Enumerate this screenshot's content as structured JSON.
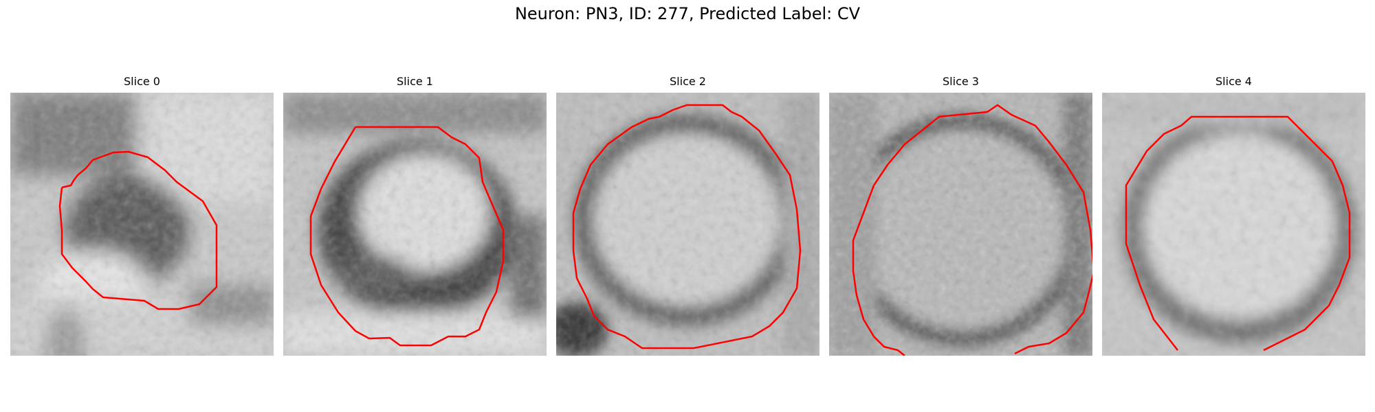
{
  "figure": {
    "title": "Neuron: PN3, ID: 277, Predicted Label: CV"
  },
  "panels": [
    {
      "title": "Slice 0"
    },
    {
      "title": "Slice 1"
    },
    {
      "title": "Slice 2"
    },
    {
      "title": "Slice 3"
    },
    {
      "title": "Slice 4"
    }
  ],
  "colors": {
    "contour": "#ff0000",
    "image_colormap": "grayscale"
  }
}
